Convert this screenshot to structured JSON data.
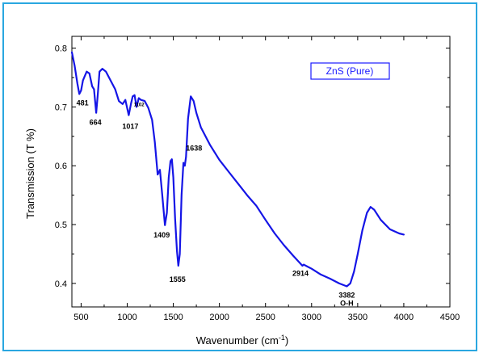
{
  "chart_data": {
    "type": "line",
    "xlabel": "Wavenumber (cm",
    "xlabel_sup": "-1",
    "xlabel_end": ")",
    "ylabel": "Transmission (T %)",
    "xlim": [
      400,
      4500
    ],
    "ylim": [
      0.36,
      0.82
    ],
    "x_ticks": [
      500,
      1000,
      1500,
      2000,
      2500,
      3000,
      3500,
      4000,
      4500
    ],
    "y_ticks": [
      0.4,
      0.5,
      0.6,
      0.7,
      0.8
    ],
    "legend": "ZnS (Pure)",
    "series_color": "#1515e6",
    "series": [
      {
        "name": "ZnS (Pure)",
        "points": [
          [
            400,
            0.793
          ],
          [
            430,
            0.77
          ],
          [
            460,
            0.74
          ],
          [
            481,
            0.722
          ],
          [
            500,
            0.728
          ],
          [
            520,
            0.745
          ],
          [
            560,
            0.76
          ],
          [
            590,
            0.757
          ],
          [
            620,
            0.735
          ],
          [
            640,
            0.73
          ],
          [
            664,
            0.69
          ],
          [
            680,
            0.72
          ],
          [
            700,
            0.76
          ],
          [
            730,
            0.765
          ],
          [
            770,
            0.76
          ],
          [
            820,
            0.745
          ],
          [
            870,
            0.73
          ],
          [
            910,
            0.71
          ],
          [
            950,
            0.705
          ],
          [
            980,
            0.712
          ],
          [
            1017,
            0.686
          ],
          [
            1040,
            0.705
          ],
          [
            1060,
            0.718
          ],
          [
            1080,
            0.72
          ],
          [
            1102,
            0.7
          ],
          [
            1125,
            0.715
          ],
          [
            1150,
            0.712
          ],
          [
            1190,
            0.71
          ],
          [
            1230,
            0.698
          ],
          [
            1270,
            0.678
          ],
          [
            1300,
            0.64
          ],
          [
            1330,
            0.585
          ],
          [
            1355,
            0.593
          ],
          [
            1380,
            0.55
          ],
          [
            1409,
            0.499
          ],
          [
            1430,
            0.52
          ],
          [
            1450,
            0.58
          ],
          [
            1470,
            0.608
          ],
          [
            1485,
            0.611
          ],
          [
            1500,
            0.58
          ],
          [
            1520,
            0.51
          ],
          [
            1540,
            0.455
          ],
          [
            1555,
            0.43
          ],
          [
            1570,
            0.45
          ],
          [
            1590,
            0.55
          ],
          [
            1610,
            0.605
          ],
          [
            1625,
            0.6
          ],
          [
            1638,
            0.615
          ],
          [
            1660,
            0.68
          ],
          [
            1690,
            0.718
          ],
          [
            1720,
            0.71
          ],
          [
            1750,
            0.69
          ],
          [
            1800,
            0.665
          ],
          [
            1900,
            0.635
          ],
          [
            2000,
            0.61
          ],
          [
            2100,
            0.59
          ],
          [
            2200,
            0.57
          ],
          [
            2300,
            0.55
          ],
          [
            2400,
            0.532
          ],
          [
            2500,
            0.508
          ],
          [
            2600,
            0.485
          ],
          [
            2700,
            0.465
          ],
          [
            2800,
            0.447
          ],
          [
            2900,
            0.43
          ],
          [
            2914,
            0.432
          ],
          [
            3000,
            0.425
          ],
          [
            3100,
            0.415
          ],
          [
            3200,
            0.408
          ],
          [
            3300,
            0.4
          ],
          [
            3382,
            0.395
          ],
          [
            3420,
            0.4
          ],
          [
            3460,
            0.42
          ],
          [
            3500,
            0.45
          ],
          [
            3550,
            0.49
          ],
          [
            3600,
            0.52
          ],
          [
            3640,
            0.53
          ],
          [
            3680,
            0.525
          ],
          [
            3750,
            0.508
          ],
          [
            3850,
            0.492
          ],
          [
            3950,
            0.485
          ],
          [
            4000,
            0.483
          ]
        ]
      }
    ],
    "annotations": [
      {
        "text": "481",
        "x": 481,
        "y": 0.722,
        "small": false
      },
      {
        "text": "664",
        "x": 664,
        "y": 0.69,
        "small": false
      },
      {
        "text": "1017",
        "x": 1017,
        "y": 0.686,
        "small": false
      },
      {
        "text": "1102",
        "x": 1102,
        "y": 0.7,
        "small": true
      },
      {
        "text": "1409",
        "x": 1409,
        "y": 0.499,
        "small": false
      },
      {
        "text": "1555",
        "x": 1555,
        "y": 0.43,
        "small": false
      },
      {
        "text": "1638",
        "x": 1638,
        "y": 0.615,
        "small": false
      },
      {
        "text": "2914",
        "x": 2914,
        "y": 0.432,
        "small": false
      },
      {
        "text": "3382",
        "x": 3382,
        "y": 0.395,
        "small": false
      },
      {
        "text": "O-H",
        "x": 3382,
        "y": 0.395,
        "small": false
      }
    ]
  }
}
